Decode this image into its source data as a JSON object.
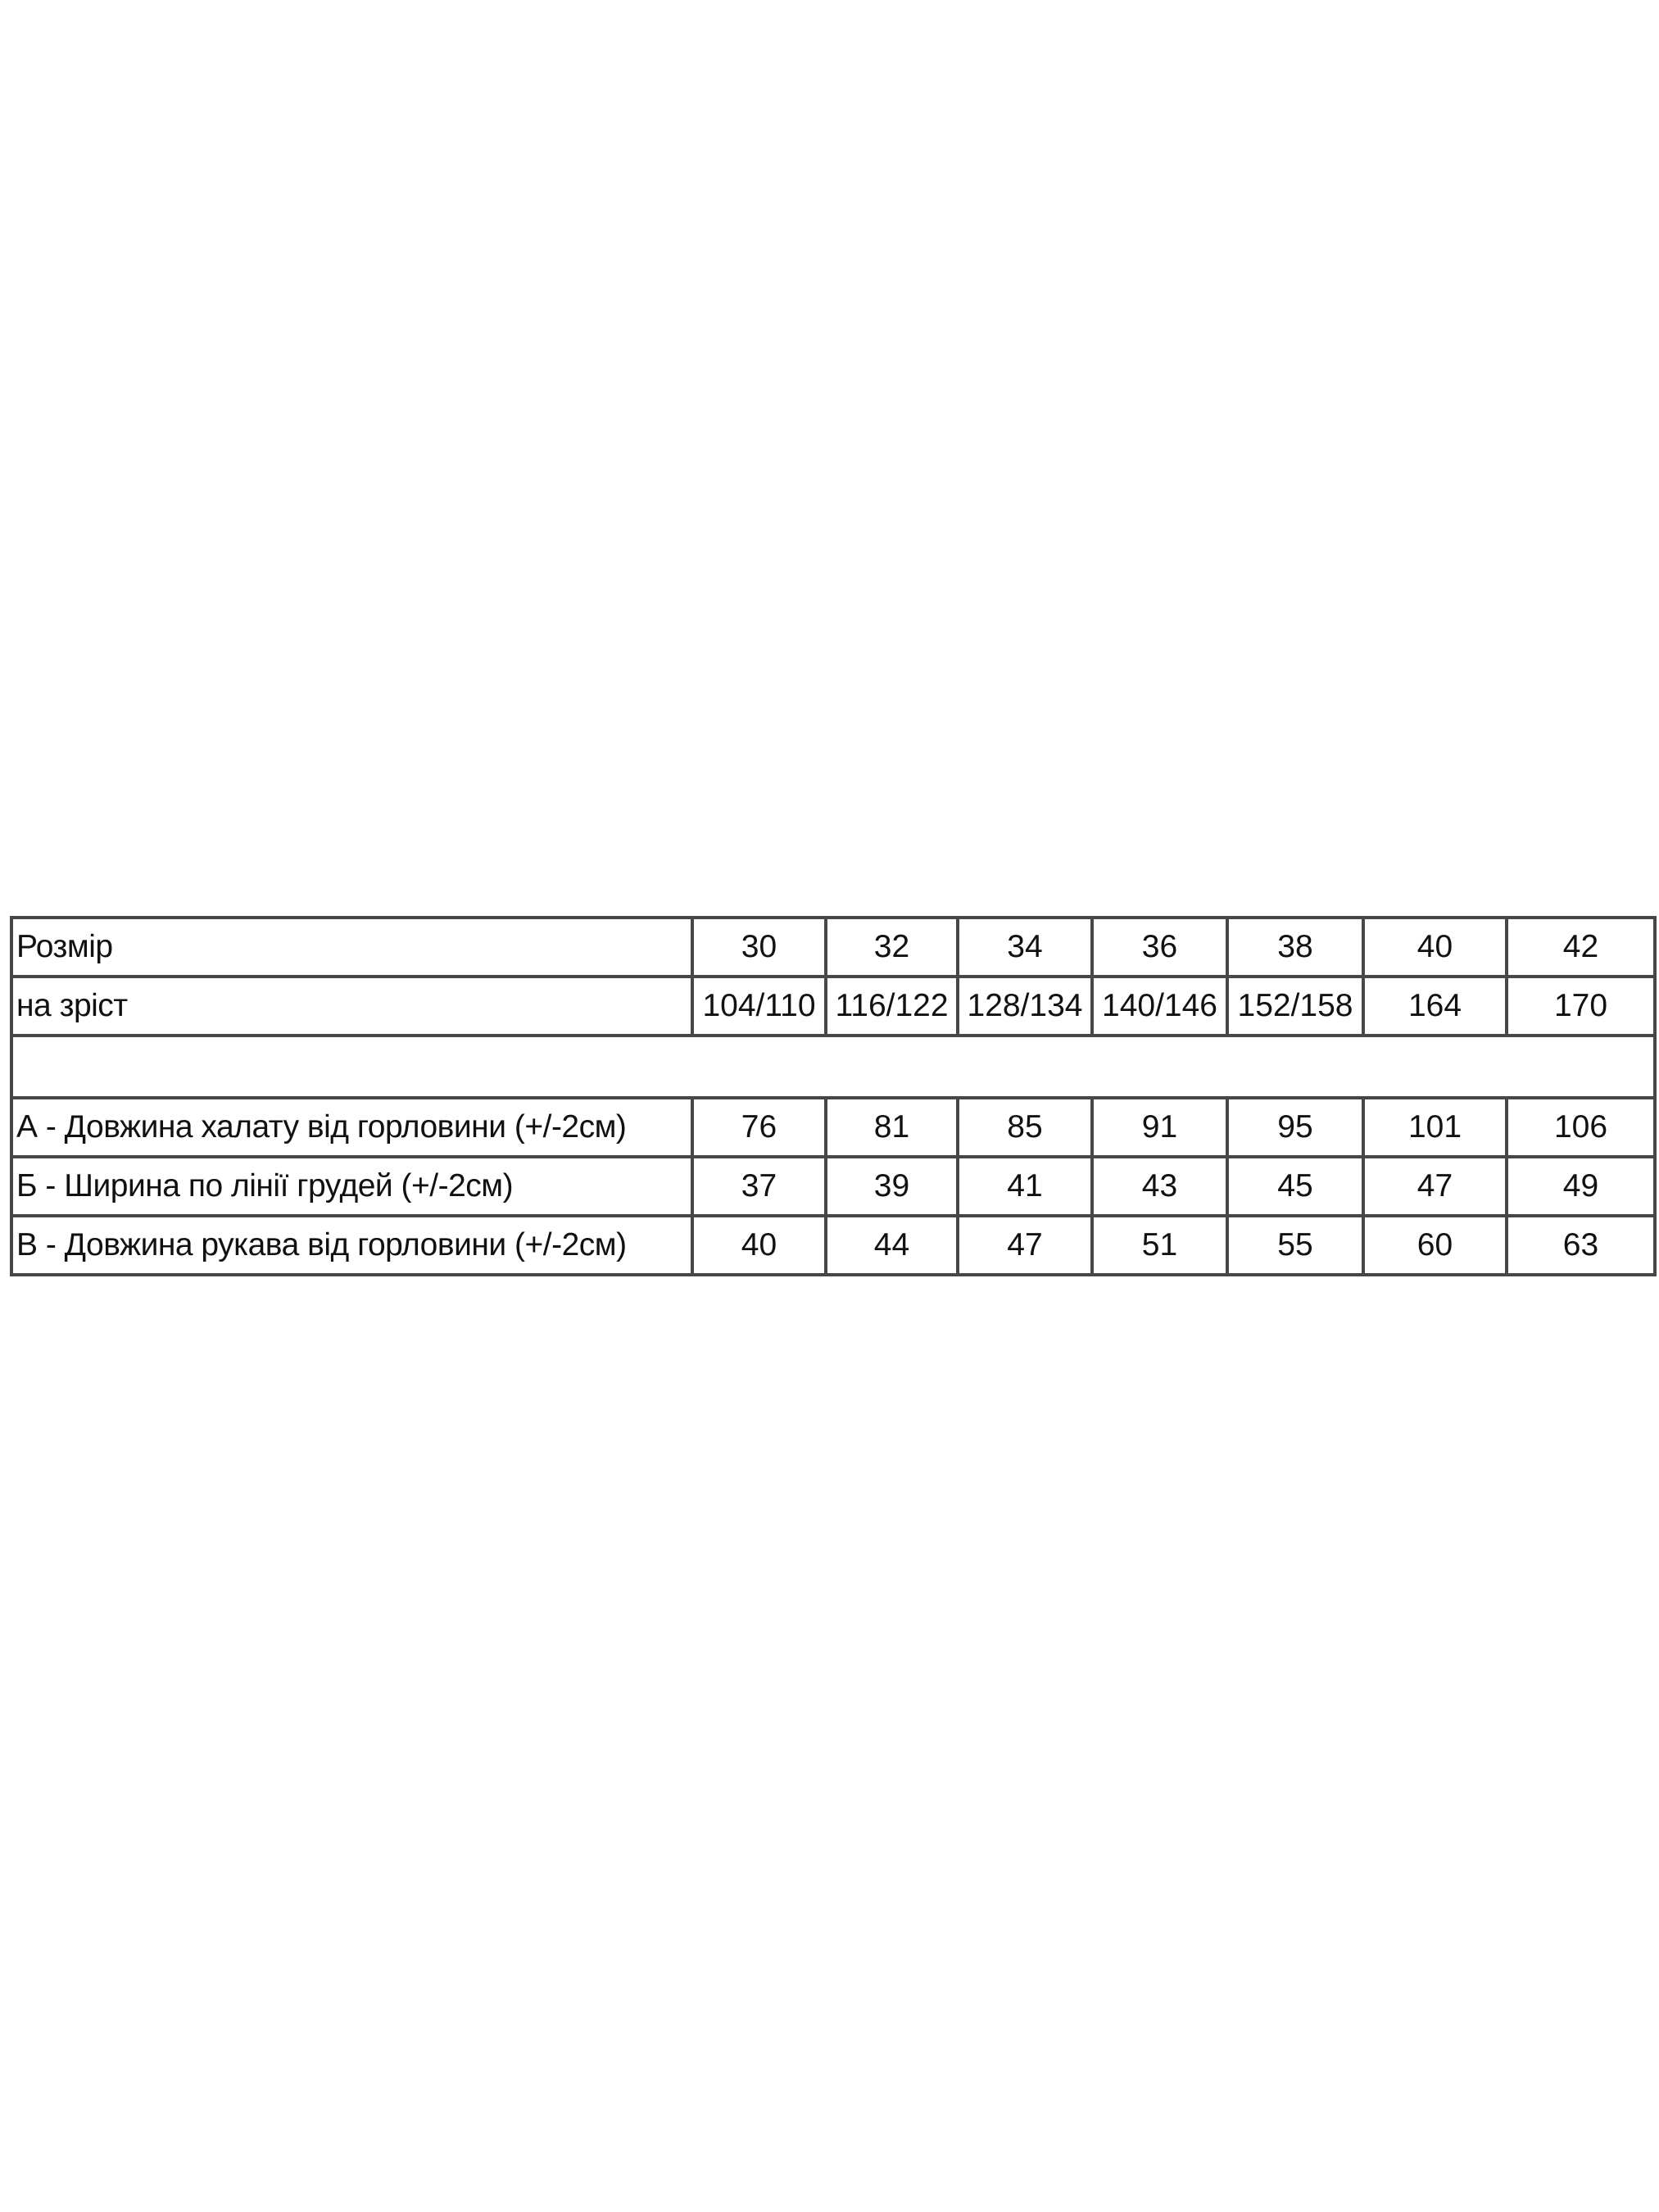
{
  "table": {
    "header": {
      "label": "Розмір",
      "sizes": [
        "30",
        "32",
        "34",
        "36",
        "38",
        "40",
        "42"
      ]
    },
    "height_row": {
      "label": "на зріст",
      "values": [
        "104/110",
        "116/122",
        "128/134",
        "140/146",
        "152/158",
        "164",
        "170"
      ]
    },
    "rows": [
      {
        "label": "А - Довжина халату від горловини (+/-2см)",
        "values": [
          "76",
          "81",
          "85",
          "91",
          "95",
          "101",
          "106"
        ]
      },
      {
        "label": "Б - Ширина по лінії грудей (+/-2см)",
        "values": [
          "37",
          "39",
          "41",
          "43",
          "45",
          "47",
          "49"
        ]
      },
      {
        "label": "В - Довжина рукава від горловини (+/-2см)",
        "values": [
          "40",
          "44",
          "47",
          "51",
          "55",
          "60",
          "63"
        ]
      }
    ]
  }
}
